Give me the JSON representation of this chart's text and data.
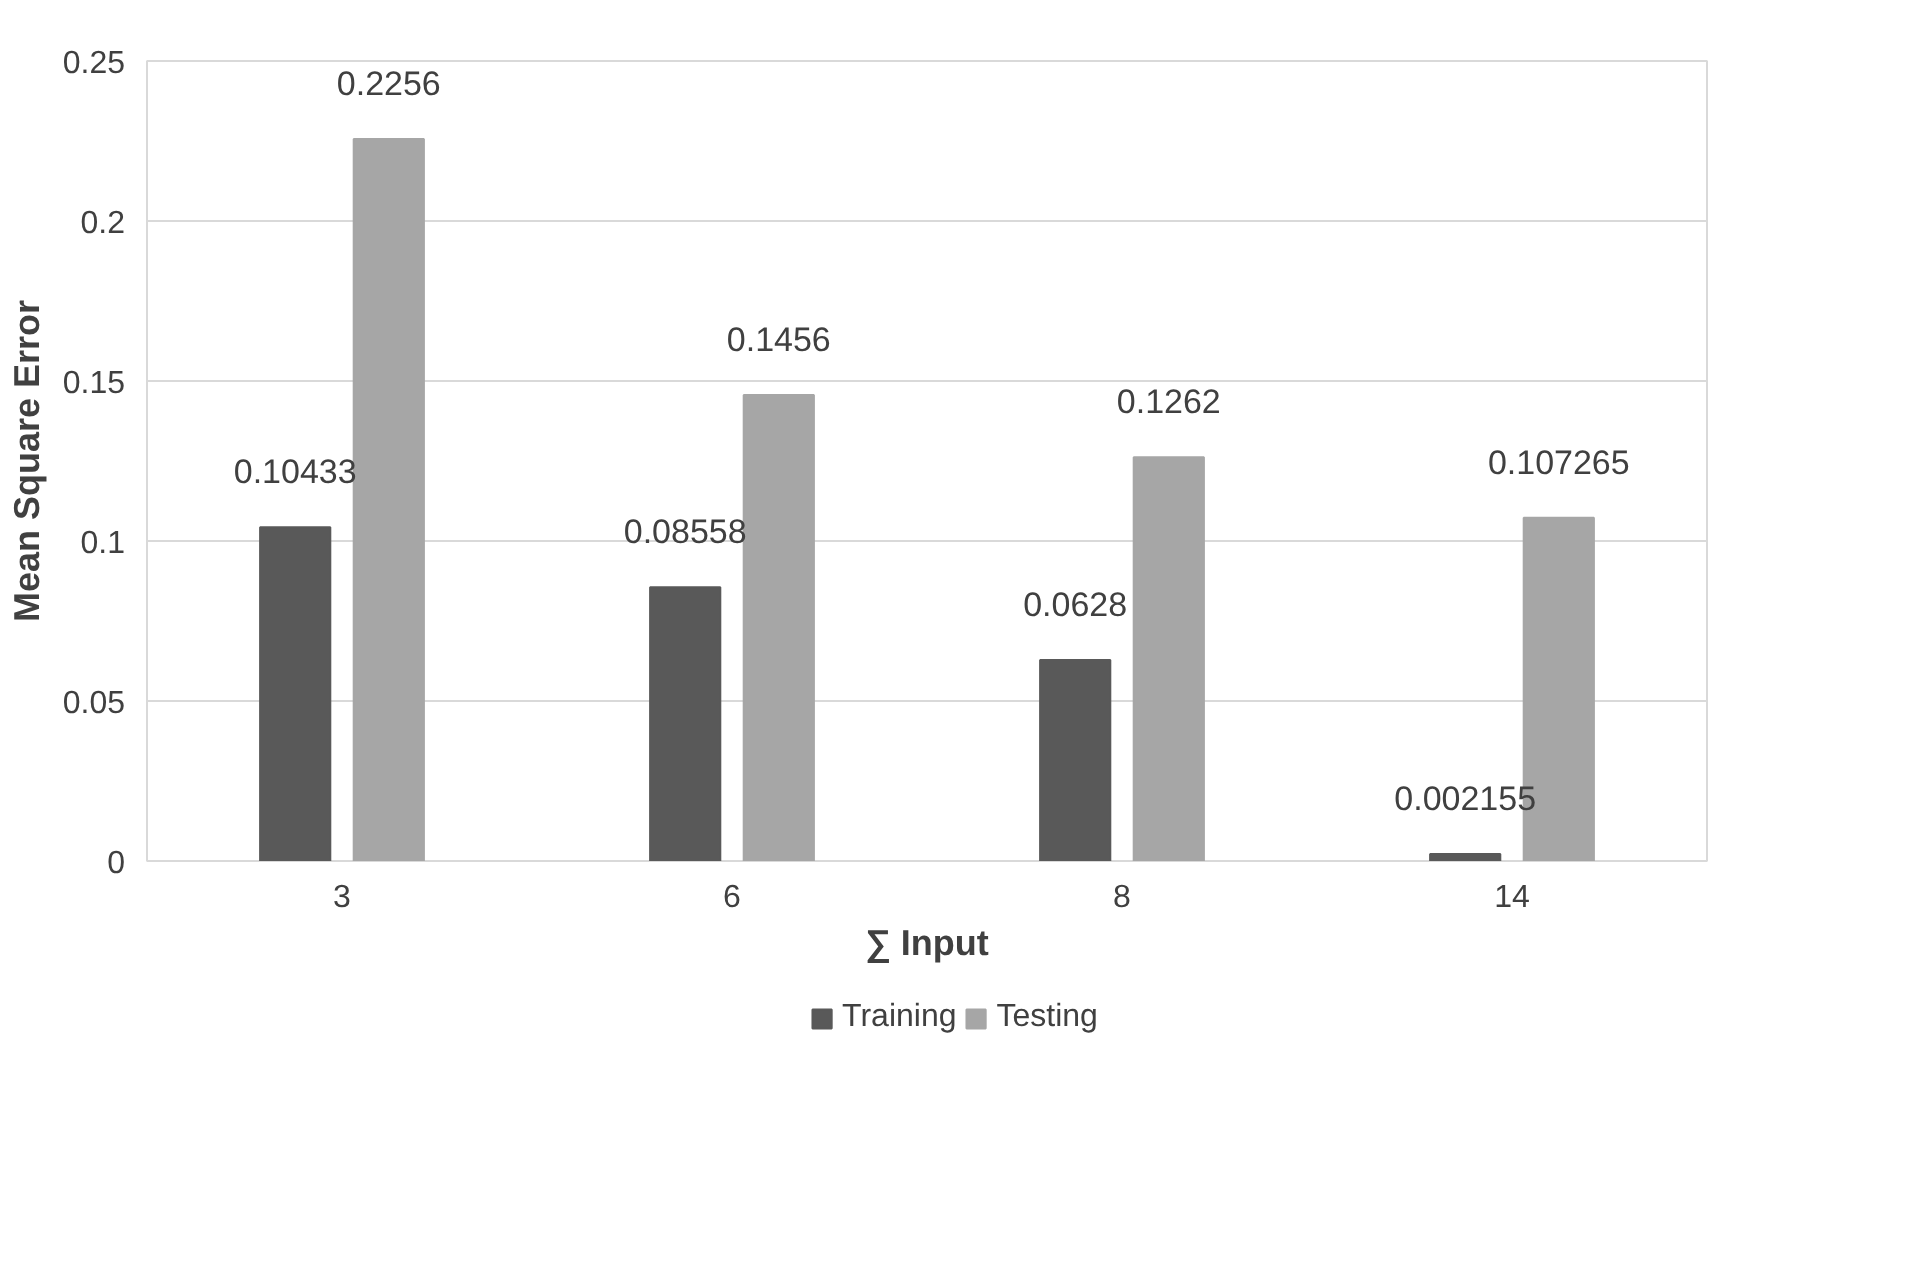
{
  "chart_data": {
    "type": "bar",
    "xlabel": "∑ Input",
    "ylabel": "Mean Square Error",
    "categories": [
      "3",
      "6",
      "8",
      "14"
    ],
    "series": [
      {
        "name": "Training",
        "color": "#595959",
        "values": [
          0.10433,
          0.08558,
          0.0628,
          0.002155
        ]
      },
      {
        "name": "Testing",
        "color": "#a6a6a6",
        "values": [
          0.2256,
          0.1456,
          0.1262,
          0.107265
        ]
      }
    ],
    "ylim": [
      0,
      0.25
    ],
    "yticks": [
      0,
      0.05,
      0.1,
      0.15,
      0.2,
      0.25
    ],
    "grid": "y",
    "legend": "bottom",
    "data_labels": true
  }
}
